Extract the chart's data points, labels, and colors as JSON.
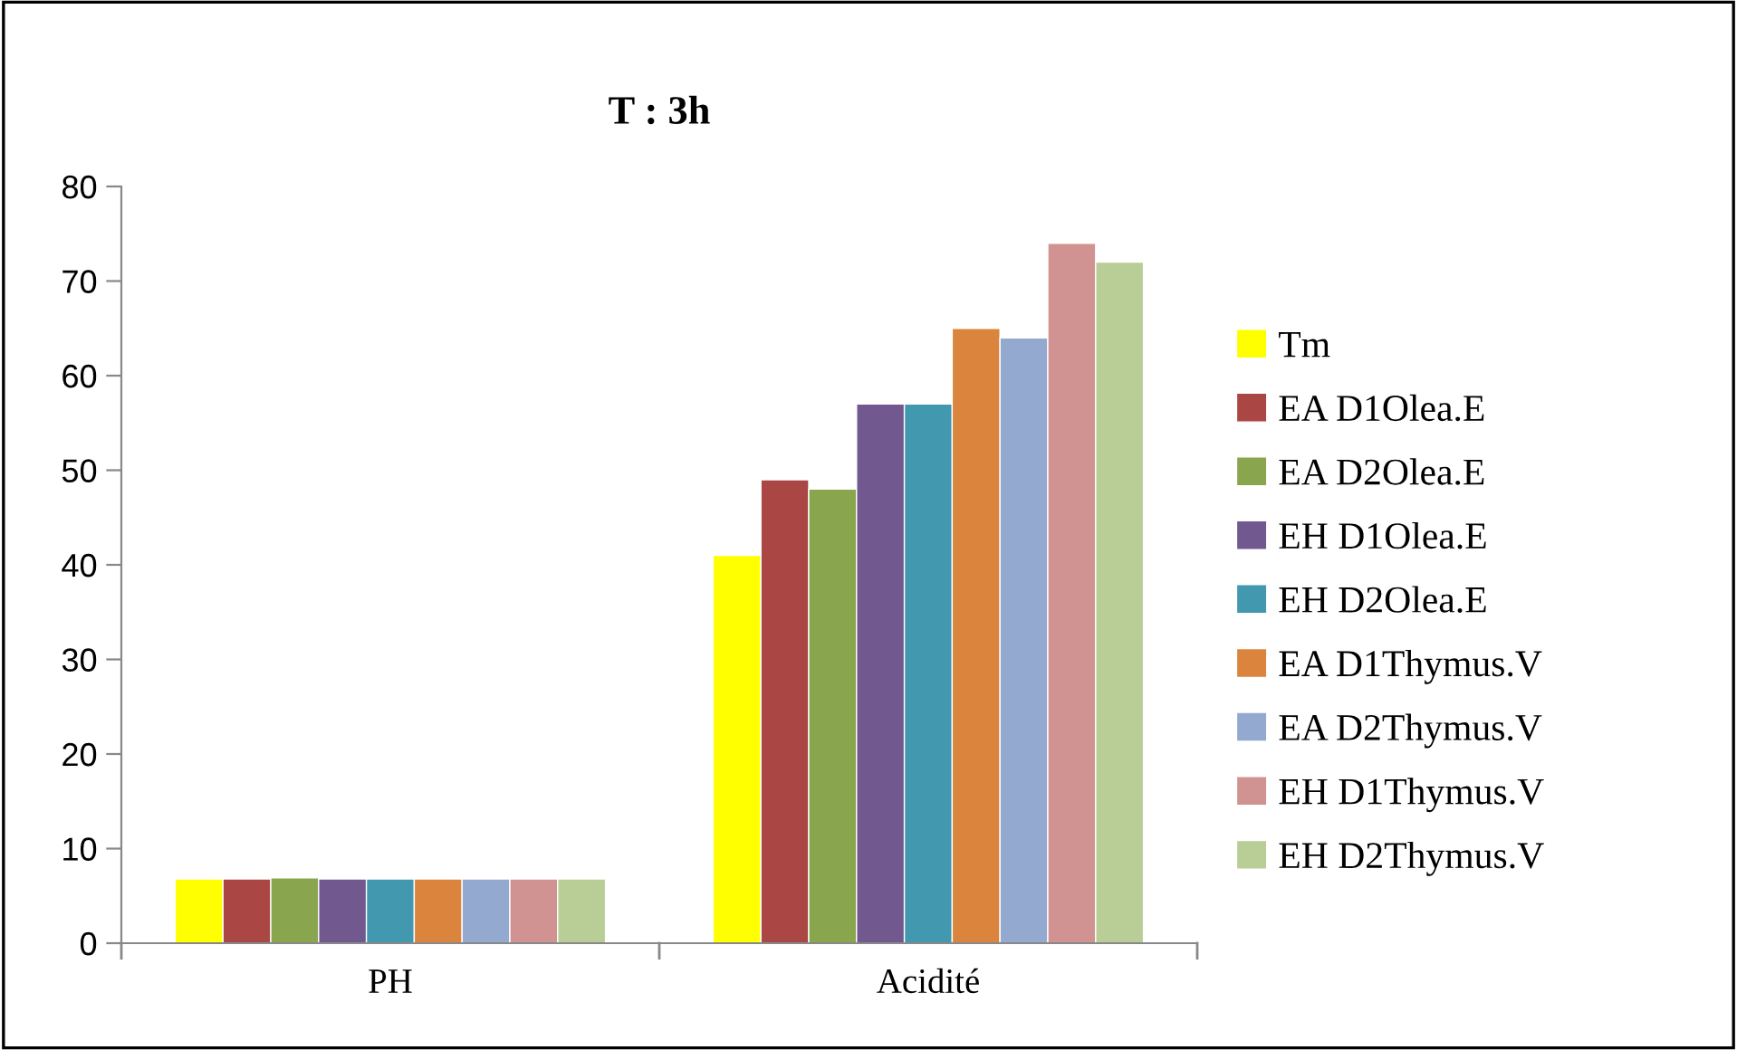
{
  "chart_data": {
    "type": "bar",
    "title": "T : 3h",
    "categories": [
      "PH",
      "Acidité"
    ],
    "series": [
      {
        "name": "Tm",
        "color": "#ffff00",
        "values": [
          6.8,
          41
        ]
      },
      {
        "name": "EA D1Olea.E",
        "color": "#aa4643",
        "values": [
          6.8,
          49
        ]
      },
      {
        "name": "EA D2Olea.E",
        "color": "#89a54e",
        "values": [
          6.9,
          48
        ]
      },
      {
        "name": "EH D1Olea.E",
        "color": "#71588f",
        "values": [
          6.8,
          57
        ]
      },
      {
        "name": "EH D2Olea.E",
        "color": "#4198af",
        "values": [
          6.8,
          57
        ]
      },
      {
        "name": "EA D1Thymus.V",
        "color": "#db843d",
        "values": [
          6.8,
          65
        ]
      },
      {
        "name": "EA D2Thymus.V",
        "color": "#93a9cf",
        "values": [
          6.8,
          64
        ]
      },
      {
        "name": "EH D1Thymus.V",
        "color": "#d19392",
        "values": [
          6.8,
          74
        ]
      },
      {
        "name": "EH D2Thymus.V",
        "color": "#b9cd96",
        "values": [
          6.8,
          72
        ]
      }
    ],
    "ylim": [
      0,
      80
    ],
    "yticks": [
      0,
      10,
      20,
      30,
      40,
      50,
      60,
      70,
      80
    ],
    "grid": false,
    "legend": "right"
  }
}
